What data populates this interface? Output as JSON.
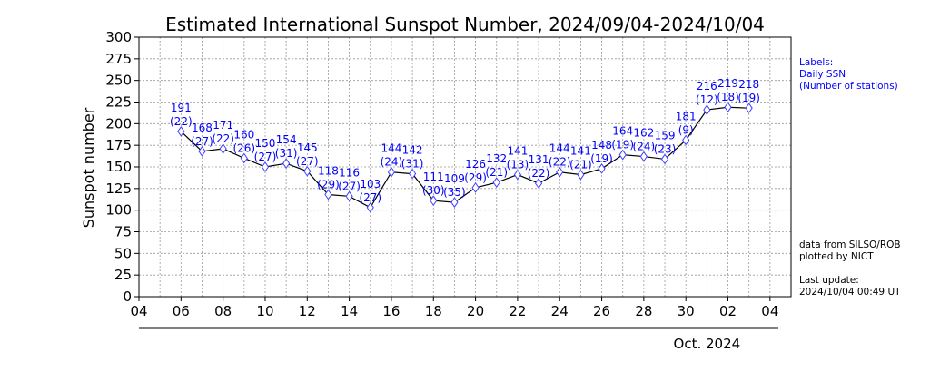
{
  "chart_data": {
    "type": "line",
    "title": "Estimated International Sunspot Number, 2024/09/04-2024/10/04",
    "xlabel": "",
    "ylabel": "Sunspot number",
    "ylim": [
      0,
      300
    ],
    "yticks": [
      "0",
      "25",
      "50",
      "75",
      "100",
      "125",
      "150",
      "175",
      "200",
      "225",
      "250",
      "275",
      "300"
    ],
    "x_range_days": [
      "2024-09-04",
      "2024-10-05"
    ],
    "xticks": [
      {
        "date": "2024-09-04",
        "label": "04"
      },
      {
        "date": "2024-09-06",
        "label": "06"
      },
      {
        "date": "2024-09-08",
        "label": "08"
      },
      {
        "date": "2024-09-10",
        "label": "10"
      },
      {
        "date": "2024-09-12",
        "label": "12"
      },
      {
        "date": "2024-09-14",
        "label": "14"
      },
      {
        "date": "2024-09-16",
        "label": "16"
      },
      {
        "date": "2024-09-18",
        "label": "18"
      },
      {
        "date": "2024-09-20",
        "label": "20"
      },
      {
        "date": "2024-09-22",
        "label": "22"
      },
      {
        "date": "2024-09-24",
        "label": "24"
      },
      {
        "date": "2024-09-26",
        "label": "26"
      },
      {
        "date": "2024-09-28",
        "label": "28"
      },
      {
        "date": "2024-09-30",
        "label": "30"
      },
      {
        "date": "2024-10-02",
        "label": "02"
      },
      {
        "date": "2024-10-04",
        "label": "04"
      }
    ],
    "grid": true,
    "month_label": "Oct. 2024",
    "series": [
      {
        "points": [
          {
            "date": "2024-09-06",
            "ssn": 191,
            "stations": 22
          },
          {
            "date": "2024-09-07",
            "ssn": 168,
            "stations": 27
          },
          {
            "date": "2024-09-08",
            "ssn": 171,
            "stations": 22
          },
          {
            "date": "2024-09-09",
            "ssn": 160,
            "stations": 26
          },
          {
            "date": "2024-09-10",
            "ssn": 150,
            "stations": 27
          },
          {
            "date": "2024-09-11",
            "ssn": 154,
            "stations": 31
          },
          {
            "date": "2024-09-12",
            "ssn": 145,
            "stations": 27
          },
          {
            "date": "2024-09-13",
            "ssn": 118,
            "stations": 29
          },
          {
            "date": "2024-09-14",
            "ssn": 116,
            "stations": 27
          },
          {
            "date": "2024-09-15",
            "ssn": 103,
            "stations": 27
          },
          {
            "date": "2024-09-16",
            "ssn": 144,
            "stations": 24
          },
          {
            "date": "2024-09-17",
            "ssn": 142,
            "stations": 31
          },
          {
            "date": "2024-09-18",
            "ssn": 111,
            "stations": 30
          },
          {
            "date": "2024-09-19",
            "ssn": 109,
            "stations": 35
          },
          {
            "date": "2024-09-20",
            "ssn": 126,
            "stations": 29
          },
          {
            "date": "2024-09-21",
            "ssn": 132,
            "stations": 21
          },
          {
            "date": "2024-09-22",
            "ssn": 141,
            "stations": 13
          },
          {
            "date": "2024-09-23",
            "ssn": 131,
            "stations": 22
          },
          {
            "date": "2024-09-24",
            "ssn": 144,
            "stations": 22
          },
          {
            "date": "2024-09-25",
            "ssn": 141,
            "stations": 21
          },
          {
            "date": "2024-09-26",
            "ssn": 148,
            "stations": 19
          },
          {
            "date": "2024-09-27",
            "ssn": 164,
            "stations": 19
          },
          {
            "date": "2024-09-28",
            "ssn": 162,
            "stations": 24
          },
          {
            "date": "2024-09-29",
            "ssn": 159,
            "stations": 23
          },
          {
            "date": "2024-09-30",
            "ssn": 181,
            "stations": 9
          },
          {
            "date": "2024-10-01",
            "ssn": 216,
            "stations": 12
          },
          {
            "date": "2024-10-02",
            "ssn": 219,
            "stations": 18
          },
          {
            "date": "2024-10-03",
            "ssn": 218,
            "stations": 19
          }
        ]
      }
    ],
    "colors": {
      "line": "#000000",
      "marker": "#4040ff",
      "labels": "#0000ff",
      "grid": "#999999"
    }
  },
  "side_notes": {
    "labels_title": "Labels:",
    "labels_line1": "Daily SSN",
    "labels_line2": "(Number of stations)",
    "source_line1": "data from SILSO/ROB",
    "source_line2": "plotted by NICT",
    "update_line1": "Last update:",
    "update_line2": "2024/10/04 00:49 UT"
  }
}
